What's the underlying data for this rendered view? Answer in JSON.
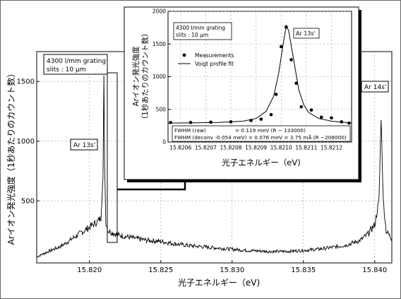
{
  "chart_data": [
    {
      "type": "line",
      "xlabel": "光子エネルギー（eV)",
      "ylabel": "Arイオン発光強度（1秒あたりのカウント数）",
      "xlim": [
        15.8163,
        15.8412
      ],
      "ylim": [
        -20,
        1750
      ],
      "x_ticks": [
        15.82,
        15.825,
        15.83,
        15.835,
        15.84
      ],
      "x_tick_labels": [
        "15.820",
        "15.825",
        "15.830",
        "15.835",
        "15.840"
      ],
      "y_ticks": [
        500,
        1000,
        1500
      ],
      "y_tick_labels": [
        "500",
        "1000",
        "1500"
      ],
      "grid": true,
      "annotations": {
        "grating": "4300 l/mm grating",
        "slits": "slits : 10 μm",
        "peak_left": "Ar 13s'",
        "peak_right": "Ar 14s'"
      },
      "series": [
        {
          "values_description_free": true,
          "x": [
            15.8163,
            15.817,
            15.818,
            15.819,
            15.82,
            15.8205,
            15.8208,
            15.82095,
            15.82101,
            15.82106,
            15.82115,
            15.8213,
            15.822,
            15.823,
            15.824,
            15.825,
            15.826,
            15.827,
            15.828,
            15.829,
            15.83,
            15.831,
            15.832,
            15.833,
            15.834,
            15.835,
            15.836,
            15.837,
            15.838,
            15.839,
            15.8395,
            15.84,
            15.8403,
            15.84045,
            15.8406,
            15.8408,
            15.8412
          ],
          "y": [
            30,
            70,
            120,
            200,
            280,
            320,
            360,
            700,
            1550,
            800,
            320,
            250,
            215,
            190,
            170,
            160,
            140,
            125,
            115,
            105,
            95,
            85,
            80,
            75,
            78,
            85,
            95,
            110,
            130,
            170,
            220,
            300,
            500,
            1200,
            500,
            250,
            180
          ]
        }
      ]
    },
    {
      "type": "scatter",
      "title": "",
      "xlabel": "光子エネルギー（eV)",
      "ylabel": "Arイオン発光強度（1秒あたりのカウント数）",
      "xlim": [
        15.82055,
        15.82128
      ],
      "ylim": [
        0,
        2000
      ],
      "x_ticks": [
        15.8206,
        15.8207,
        15.8208,
        15.8209,
        15.821,
        15.8211,
        15.8212
      ],
      "x_tick_labels": [
        "15.8206",
        "15.8207",
        "15.8208",
        "15.8209",
        "15.8210",
        "15.8211",
        "15.8212"
      ],
      "y_ticks": [
        0,
        500,
        1000,
        1500,
        2000
      ],
      "y_tick_labels": [
        "0",
        "500",
        "1000",
        "1500",
        "2000"
      ],
      "grid": true,
      "legend": {
        "placement": "top-left",
        "entries": [
          "Measurements",
          "Voigt profile fit"
        ]
      },
      "annotations": {
        "grating": "4300 l/mm grating",
        "slits": "slits : 10 μm",
        "peak": "Ar 13s'",
        "fwhm_raw": "FWHM (raw)",
        "fwhm_raw_value": "= 0.119 meV (R ~ 133000)",
        "fwhm_deconv": "FWHM (deconv -0.054 meV) = 0.076 meV = 3.75 mÅ  (R ~208000)"
      },
      "series": [
        {
          "name": "Measurements",
          "x": [
            15.82056,
            15.82064,
            15.82072,
            15.8208,
            15.82088,
            15.82092,
            15.82096,
            15.82098,
            15.821,
            15.82102,
            15.82104,
            15.82106,
            15.82108,
            15.82112,
            15.82116,
            15.8212,
            15.82124,
            15.82127
          ],
          "y": [
            300,
            300,
            305,
            310,
            330,
            350,
            420,
            730,
            1460,
            1760,
            1260,
            900,
            540,
            490,
            380,
            370,
            310,
            290
          ]
        },
        {
          "name": "Voigt profile fit",
          "x": [
            15.82055,
            15.82065,
            15.82075,
            15.82085,
            15.8209,
            15.82094,
            15.82097,
            15.82099,
            15.82101,
            15.82102,
            15.82103,
            15.82105,
            15.82107,
            15.82109,
            15.82111,
            15.82115,
            15.8212,
            15.82128
          ],
          "y": [
            290,
            295,
            300,
            320,
            360,
            470,
            700,
            1050,
            1550,
            1780,
            1700,
            1250,
            800,
            570,
            450,
            360,
            320,
            290
          ]
        }
      ]
    }
  ]
}
